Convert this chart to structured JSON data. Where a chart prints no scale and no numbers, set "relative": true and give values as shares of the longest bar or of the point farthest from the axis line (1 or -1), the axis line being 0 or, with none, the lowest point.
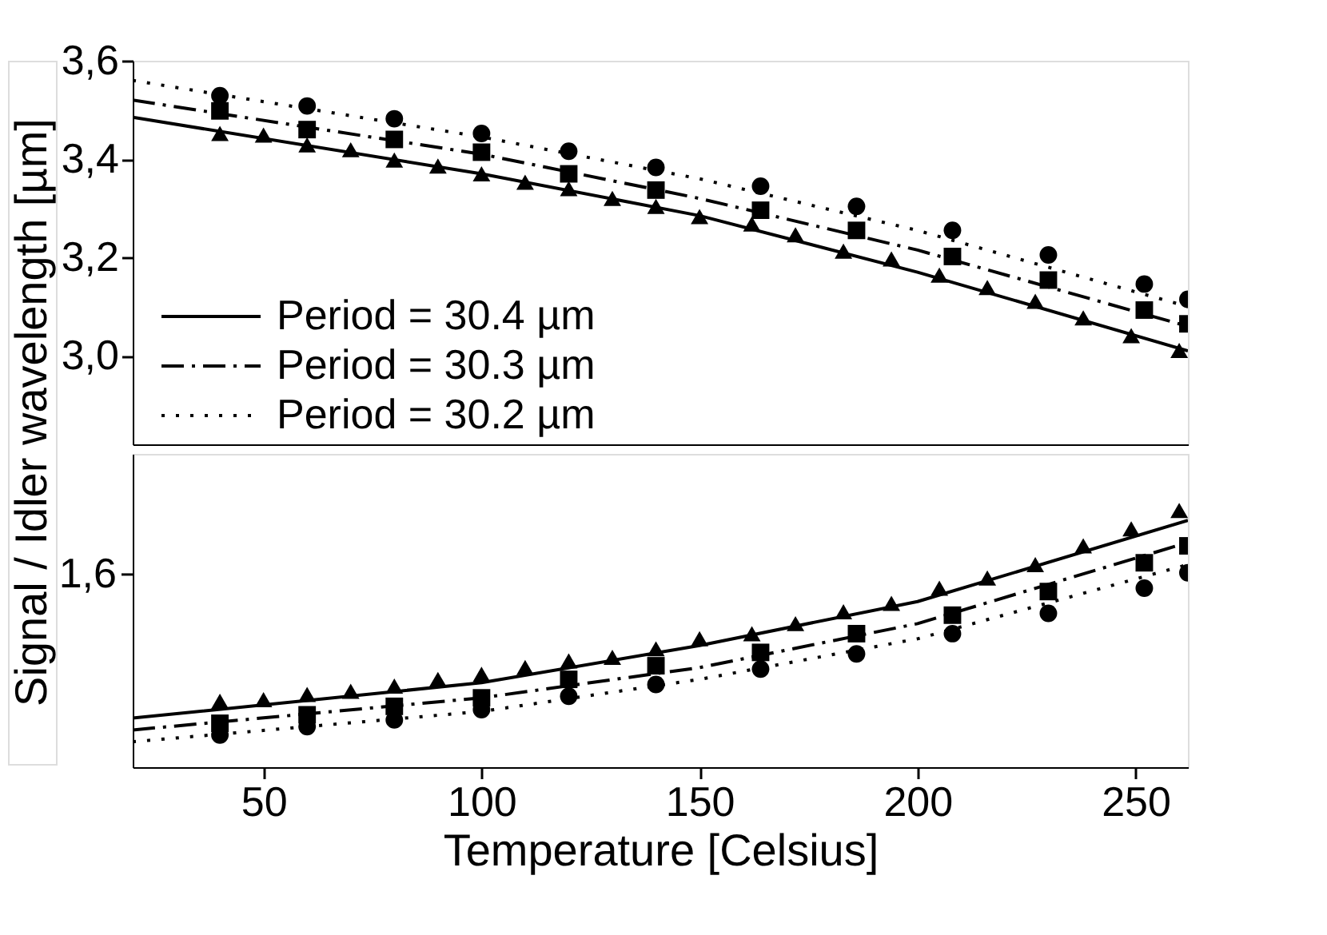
{
  "chart_data": [
    {
      "type": "scatter",
      "ylabel": "Signal / Idler wavelength [µm]",
      "xlim": [
        20,
        262
      ],
      "xticks": [
        50,
        100,
        150,
        200,
        250
      ],
      "ylim": [
        2.82,
        3.6
      ],
      "yticks": [
        {
          "value": 3.0,
          "label": "3,0"
        },
        {
          "value": 3.2,
          "label": "3,2"
        },
        {
          "value": 3.4,
          "label": "3,4"
        },
        {
          "value": 3.6,
          "label": "3,6"
        }
      ],
      "tick_labels": "y",
      "legend": "bottom left",
      "series": [
        {
          "type": "line",
          "name": "Period = 30.4 µm",
          "color": "#000000",
          "line_style": "solid",
          "x": [
            20,
            100,
            150,
            200,
            262
          ],
          "values": [
            3.485,
            3.37,
            3.285,
            3.17,
            3.01
          ]
        },
        {
          "type": "line",
          "name": "Period = 30.3 µm",
          "color": "#000000",
          "line_style": "dashed",
          "x": [
            20,
            100,
            150,
            200,
            262
          ],
          "values": [
            3.52,
            3.41,
            3.32,
            3.215,
            3.06
          ]
        },
        {
          "type": "line",
          "name": "Period = 30.2 µm",
          "color": "#000000",
          "line_style": "dotted",
          "x": [
            20,
            100,
            150,
            200,
            262
          ],
          "values": [
            3.56,
            3.445,
            3.36,
            3.255,
            3.1
          ]
        },
        {
          "type": "scatter",
          "color": "#000000",
          "marker": "triangle",
          "x": [
            40,
            50,
            60,
            70,
            80,
            90,
            100,
            110,
            120,
            130,
            140,
            150,
            162,
            172,
            183,
            194,
            205,
            216,
            227,
            238,
            249,
            260
          ],
          "values": [
            3.452,
            3.449,
            3.429,
            3.419,
            3.398,
            3.386,
            3.37,
            3.353,
            3.34,
            3.32,
            3.304,
            3.283,
            3.268,
            3.246,
            3.213,
            3.197,
            3.164,
            3.139,
            3.111,
            3.077,
            3.041,
            3.011
          ]
        },
        {
          "type": "scatter",
          "color": "#000000",
          "marker": "square",
          "x": [
            40,
            60,
            80,
            100,
            120,
            140,
            164,
            186,
            208,
            230,
            252,
            262
          ],
          "values": [
            3.498,
            3.46,
            3.44,
            3.414,
            3.37,
            3.337,
            3.296,
            3.255,
            3.202,
            3.154,
            3.093,
            3.065
          ]
        },
        {
          "type": "scatter",
          "color": "#000000",
          "marker": "circle",
          "x": [
            40,
            60,
            80,
            100,
            120,
            140,
            164,
            186,
            208,
            230,
            252,
            262
          ],
          "values": [
            3.529,
            3.508,
            3.482,
            3.452,
            3.416,
            3.383,
            3.345,
            3.304,
            3.255,
            3.205,
            3.146,
            3.115
          ]
        }
      ]
    },
    {
      "type": "scatter",
      "xlabel": "Temperature [Celsius]",
      "xlim": [
        20,
        262
      ],
      "xticks": [
        50,
        100,
        150,
        200,
        250
      ],
      "relative": true,
      "annotations": [
        "1,6"
      ],
      "series": [
        {
          "type": "line",
          "color": "#000000",
          "line_style": "solid",
          "x": [
            20,
            100,
            150,
            200,
            262
          ],
          "values": [
            0.191,
            0.329,
            0.474,
            0.645,
            0.961
          ]
        },
        {
          "type": "line",
          "color": "#000000",
          "line_style": "dashed",
          "x": [
            20,
            100,
            150,
            200,
            262
          ],
          "values": [
            0.145,
            0.27,
            0.388,
            0.559,
            0.875
          ]
        },
        {
          "type": "line",
          "color": "#000000",
          "line_style": "dotted",
          "x": [
            20,
            100,
            150,
            200,
            262
          ],
          "values": [
            0.099,
            0.217,
            0.342,
            0.5,
            0.789
          ]
        },
        {
          "type": "scatter",
          "color": "#000000",
          "marker": "triangle",
          "x": [
            40,
            50,
            60,
            70,
            80,
            90,
            100,
            110,
            120,
            130,
            140,
            150,
            162,
            172,
            183,
            194,
            205,
            216,
            227,
            238,
            249,
            260
          ],
          "values": [
            0.257,
            0.263,
            0.283,
            0.296,
            0.316,
            0.342,
            0.362,
            0.388,
            0.414,
            0.428,
            0.461,
            0.5,
            0.52,
            0.559,
            0.605,
            0.638,
            0.697,
            0.737,
            0.789,
            0.862,
            0.928,
            1
          ]
        },
        {
          "type": "scatter",
          "color": "#000000",
          "marker": "square",
          "x": [
            40,
            60,
            80,
            100,
            120,
            140,
            164,
            186,
            208,
            230,
            252,
            262
          ],
          "values": [
            0.171,
            0.204,
            0.237,
            0.27,
            0.342,
            0.395,
            0.447,
            0.52,
            0.592,
            0.684,
            0.796,
            0.862
          ]
        },
        {
          "type": "scatter",
          "color": "#000000",
          "marker": "circle",
          "x": [
            40,
            60,
            80,
            100,
            120,
            140,
            164,
            186,
            208,
            230,
            252,
            262
          ],
          "values": [
            0.125,
            0.158,
            0.184,
            0.224,
            0.276,
            0.322,
            0.382,
            0.441,
            0.52,
            0.599,
            0.697,
            0.757
          ]
        }
      ]
    }
  ]
}
